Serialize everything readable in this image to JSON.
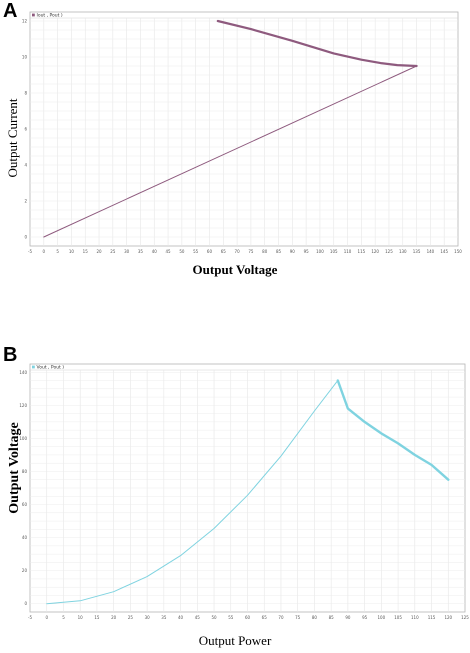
{
  "panels": {
    "A": {
      "letter": "A"
    },
    "B": {
      "letter": "B"
    }
  },
  "chart_data": [
    {
      "type": "line",
      "xlabel": "Output Voltage",
      "ylabel": "Output Current",
      "legend": "Iout , Pout )",
      "legend_placement": "top-left",
      "grid": true,
      "color": "#8e5a7e",
      "xlim": [
        -5,
        150
      ],
      "ylim": [
        -0.5,
        12.5
      ],
      "x_ticks": [
        -5,
        0,
        5,
        10,
        15,
        20,
        25,
        30,
        35,
        40,
        45,
        50,
        55,
        60,
        65,
        70,
        75,
        80,
        85,
        90,
        95,
        100,
        105,
        110,
        115,
        120,
        125,
        130,
        135,
        140,
        145,
        150
      ],
      "y_ticks": [
        0,
        2,
        4,
        6,
        8,
        10,
        12
      ],
      "series": [
        {
          "x": [
            0,
            135
          ],
          "y": [
            0,
            9.5
          ]
        },
        {
          "x": [
            63,
            75,
            90,
            105,
            115,
            122,
            128,
            135
          ],
          "y": [
            12,
            11.55,
            10.9,
            10.2,
            9.85,
            9.66,
            9.55,
            9.5
          ]
        }
      ]
    },
    {
      "type": "line",
      "xlabel": "Output Power",
      "ylabel": "Output Voltage",
      "legend": "Vout , Pout )",
      "legend_placement": "top-left",
      "grid": true,
      "color": "#7fd3e0",
      "xlim": [
        -5,
        125
      ],
      "ylim": [
        -5,
        145
      ],
      "x_ticks": [
        -5,
        0,
        5,
        10,
        15,
        20,
        25,
        30,
        35,
        40,
        45,
        50,
        55,
        60,
        65,
        70,
        75,
        80,
        85,
        90,
        95,
        100,
        105,
        110,
        115,
        120,
        125
      ],
      "y_ticks": [
        0,
        20,
        40,
        60,
        80,
        100,
        120,
        140
      ],
      "series": [
        {
          "x": [
            0,
            10,
            20,
            30,
            40,
            50,
            60,
            70,
            80,
            87
          ],
          "y": [
            0,
            1.8,
            7.3,
            16.4,
            29.1,
            45.5,
            65.6,
            89.3,
            116.6,
            135
          ]
        },
        {
          "x": [
            87,
            90,
            95,
            100,
            105,
            110,
            115,
            120
          ],
          "y": [
            135,
            118,
            110,
            103,
            97,
            90,
            84,
            75
          ]
        }
      ]
    }
  ]
}
